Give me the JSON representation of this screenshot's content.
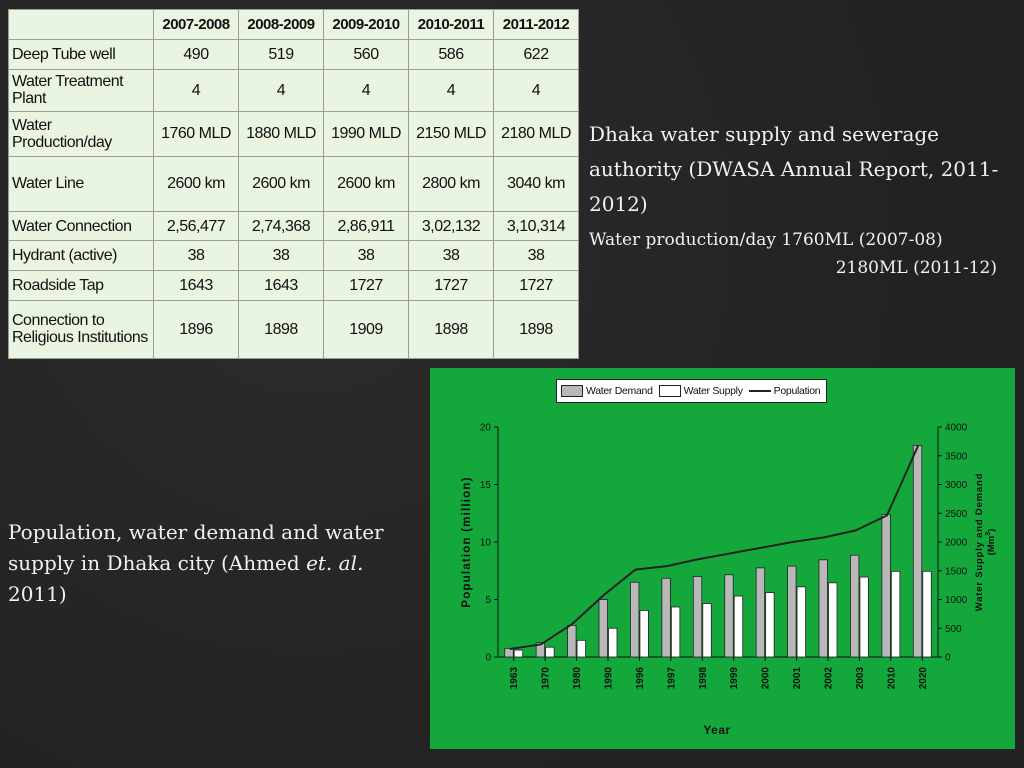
{
  "table": {
    "headers": [
      "2007-2008",
      "2008-2009",
      "2009-2010",
      "2010-2011",
      "2011-2012"
    ],
    "rows": [
      {
        "label": "Deep Tube well",
        "values": [
          "490",
          "519",
          "560",
          "586",
          "622"
        ]
      },
      {
        "label": "Water Treatment Plant",
        "values": [
          "4",
          "4",
          "4",
          "4",
          "4"
        ]
      },
      {
        "label": "Water Production/day",
        "values": [
          "1760 MLD",
          "1880 MLD",
          "1990 MLD",
          "2150 MLD",
          "2180 MLD"
        ]
      },
      {
        "label": "Water Line",
        "values": [
          "2600 km",
          "2600 km",
          "2600 km",
          "2800 km",
          "3040 km"
        ]
      },
      {
        "label": "Water Connection",
        "values": [
          "2,56,477",
          "2,74,368",
          "2,86,911",
          "3,02,132",
          "3,10,314"
        ]
      },
      {
        "label": "Hydrant (active)",
        "values": [
          "38",
          "38",
          "38",
          "38",
          "38"
        ]
      },
      {
        "label": "Roadside Tap",
        "values": [
          "1643",
          "1643",
          "1727",
          "1727",
          "1727"
        ]
      },
      {
        "label": "Connection to Religious Institutions",
        "values": [
          "1896",
          "1898",
          "1909",
          "1898",
          "1898"
        ]
      }
    ]
  },
  "report_text": {
    "line1": "Dhaka water supply and sewerage authority (DWASA Annual Report, 2011-2012)",
    "line2": "Water production/day 1760ML (2007-08)",
    "line3": "2180ML (2011-12)"
  },
  "caption": {
    "before_italic": "Population, water demand and water supply in Dhaka city (Ahmed ",
    "italic": "et. al.",
    "after_italic": " 2011)"
  },
  "colors": {
    "chart_background": "#14a83c",
    "demand_bar": "#b8b8b8",
    "supply_bar": "#ffffff",
    "population_line": "#222222"
  },
  "chart_data": {
    "type": "bar",
    "categories": [
      "1963",
      "1970",
      "1980",
      "1990",
      "1996",
      "1997",
      "1998",
      "1999",
      "2000",
      "2001",
      "2002",
      "2003",
      "2010",
      "2020"
    ],
    "series": [
      {
        "name": "Water Demand",
        "kind": "bar",
        "axis": "right",
        "values": [
          150,
          250,
          550,
          1000,
          1300,
          1370,
          1400,
          1430,
          1550,
          1580,
          1690,
          1770,
          2480,
          3680
        ]
      },
      {
        "name": "Water Supply",
        "kind": "bar",
        "axis": "right",
        "values": [
          120,
          170,
          290,
          500,
          810,
          870,
          930,
          1060,
          1120,
          1220,
          1290,
          1390,
          1490,
          1490
        ]
      },
      {
        "name": "Population",
        "kind": "line",
        "axis": "left",
        "values": [
          0.7,
          1.1,
          2.9,
          5.4,
          7.6,
          7.9,
          8.5,
          9.0,
          9.5,
          10.0,
          10.4,
          11.0,
          12.3,
          18.4
        ]
      }
    ],
    "xlabel": "Year",
    "ylabel": "Population (million)",
    "y2label_line1": "Water Supply and Demand",
    "y2label_line2": "(Mm",
    "y2label_sup": "3",
    "y2label_close": ")",
    "ylim": [
      0,
      20
    ],
    "y_ticks": [
      "0",
      "5",
      "10",
      "15",
      "20"
    ],
    "y2lim": [
      0,
      4000
    ],
    "y2_ticks": [
      "0",
      "500",
      "1000",
      "1500",
      "2000",
      "2500",
      "3000",
      "3500",
      "4000"
    ],
    "legend_position": "top-center"
  }
}
